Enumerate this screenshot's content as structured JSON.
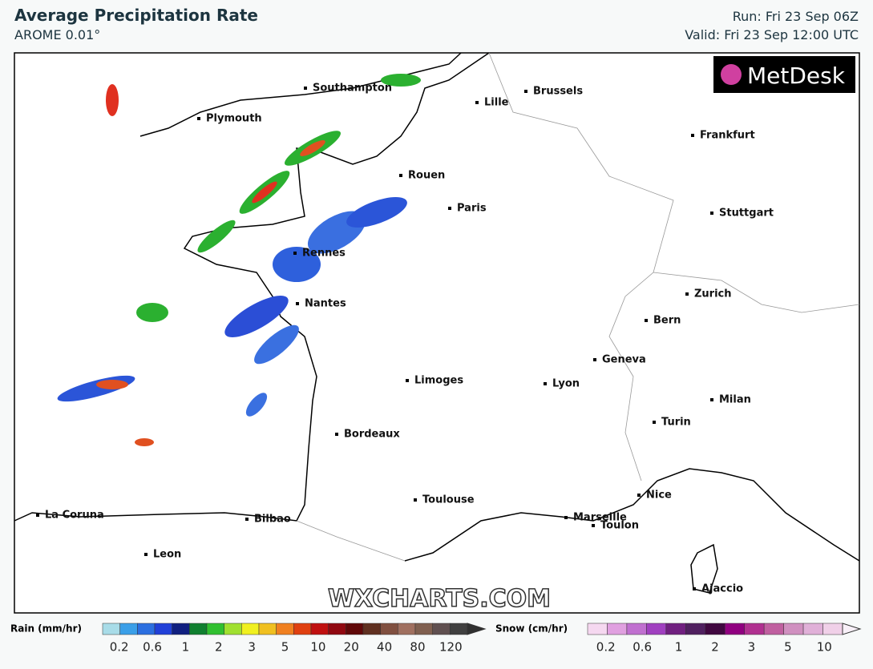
{
  "header": {
    "title": "Average Precipitation Rate",
    "subtitle": "AROME 0.01°",
    "run": "Run: Fri 23 Sep 06Z",
    "valid": "Valid: Fri 23 Sep 12:00 UTC"
  },
  "logo": "MetDesk",
  "watermark": "WXCHARTS.COM",
  "cities": [
    "Southampton",
    "Brussels",
    "Lille",
    "Plymouth",
    "Frankfurt",
    "Rouen",
    "Paris",
    "Stuttgart",
    "Rennes",
    "Zurich",
    "Nantes",
    "Bern",
    "Geneva",
    "Limoges",
    "Lyon",
    "Milan",
    "Turin",
    "Bordeaux",
    "Nice",
    "Toulouse",
    "Marseille",
    "Toulon",
    "La Coruna",
    "Bilbao",
    "Leon",
    "Ajaccio"
  ],
  "legend": {
    "rain": {
      "label": "Rain (mm/hr)",
      "ticks": [
        0.2,
        0.6,
        1,
        2,
        3,
        5,
        10,
        20,
        40,
        80,
        120
      ]
    },
    "snow": {
      "label": "Snow (cm/hr)",
      "ticks": [
        0.2,
        0.6,
        1,
        2,
        3,
        5,
        10
      ]
    }
  }
}
